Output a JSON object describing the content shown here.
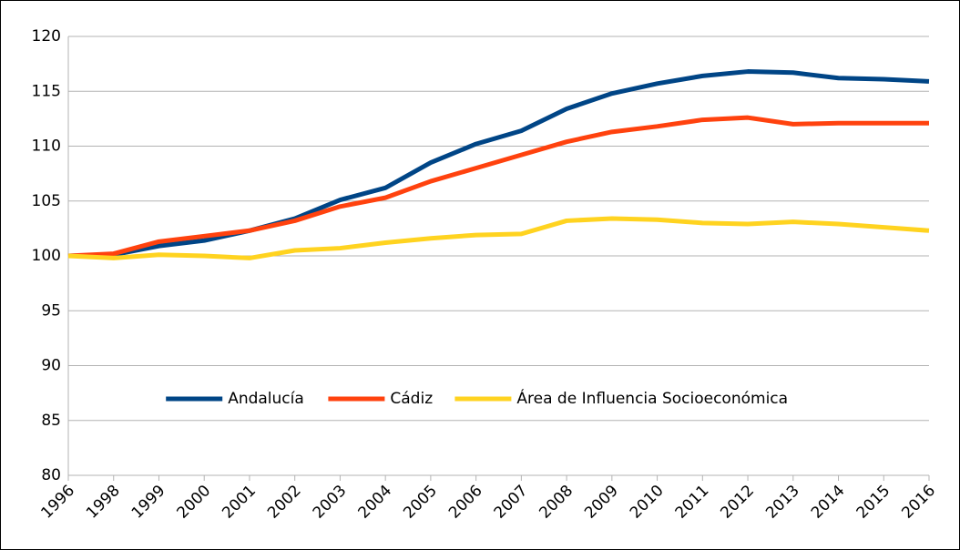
{
  "chart_data": {
    "type": "line",
    "categories": [
      "1996",
      "1998",
      "1999",
      "2000",
      "2001",
      "2002",
      "2003",
      "2004",
      "2005",
      "2006",
      "2007",
      "2008",
      "2009",
      "2010",
      "2011",
      "2012",
      "2013",
      "2014",
      "2015",
      "2016"
    ],
    "series": [
      {
        "name": "Andalucía",
        "color": "#004586",
        "values": [
          100,
          100.1,
          100.9,
          101.4,
          102.3,
          103.4,
          105.1,
          106.2,
          108.5,
          110.2,
          111.4,
          113.4,
          114.8,
          115.7,
          116.4,
          116.8,
          116.7,
          116.2,
          116.1,
          115.9
        ]
      },
      {
        "name": "Cádiz",
        "color": "#ff420e",
        "values": [
          100,
          100.2,
          101.3,
          101.8,
          102.3,
          103.2,
          104.5,
          105.3,
          106.8,
          108.0,
          109.2,
          110.4,
          111.3,
          111.8,
          112.4,
          112.6,
          112.0,
          112.1,
          112.1,
          112.1
        ]
      },
      {
        "name": "Área de Influencia Socioeconómica",
        "color": "#ffd320",
        "values": [
          100,
          99.8,
          100.1,
          100.0,
          99.8,
          100.5,
          100.7,
          101.2,
          101.6,
          101.9,
          102.0,
          103.2,
          103.4,
          103.3,
          103.0,
          102.9,
          103.1,
          102.9,
          102.6,
          102.3
        ]
      }
    ],
    "ylim": [
      80,
      120
    ],
    "yticks": [
      80,
      85,
      90,
      95,
      100,
      105,
      110,
      115,
      120
    ],
    "grid": true,
    "legend": "inside-bottom"
  }
}
